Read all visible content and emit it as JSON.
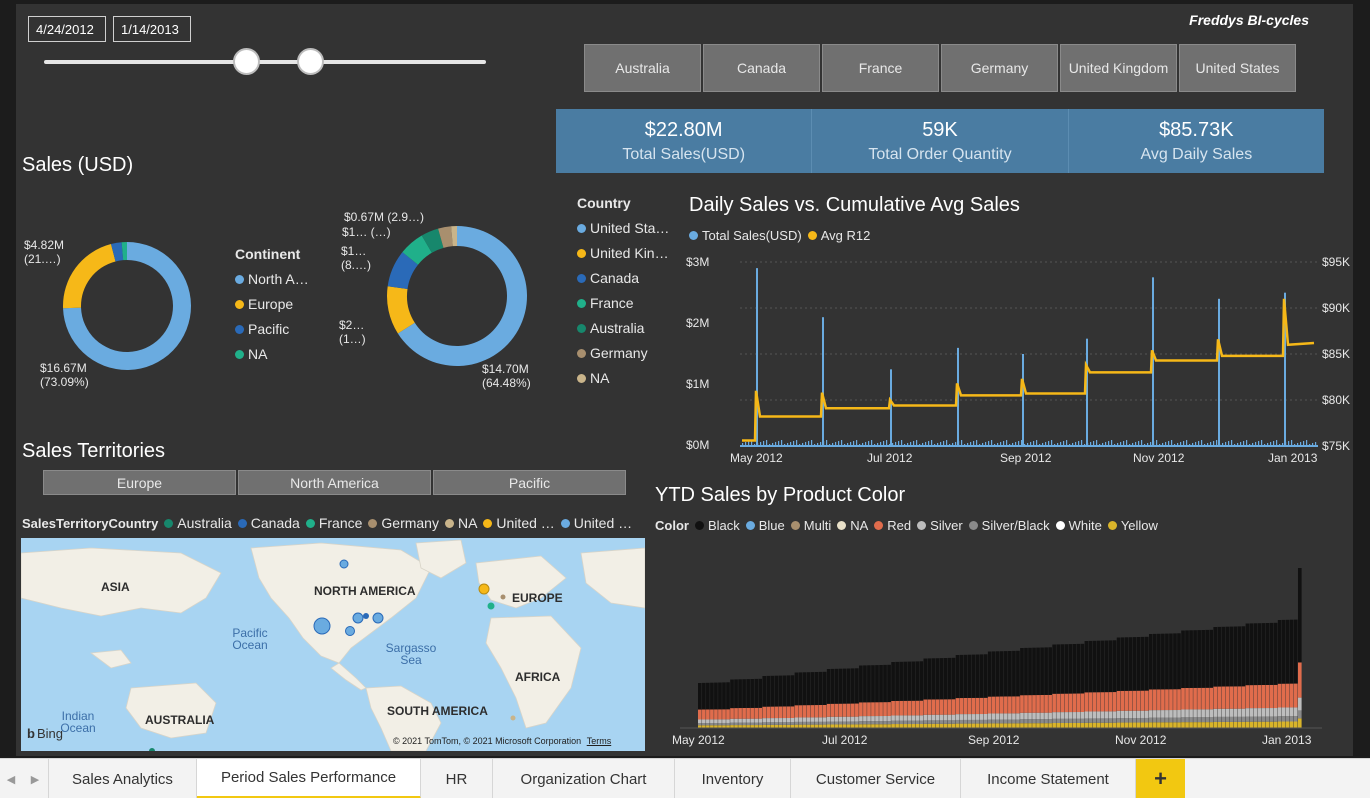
{
  "date_range": {
    "start": "4/24/2012",
    "end": "1/14/2013",
    "range_start_fraction": 0.46,
    "range_end_fraction": 0.6
  },
  "brand": "Freddys BI-cycles",
  "country_buttons": [
    "Australia",
    "Canada",
    "France",
    "Germany",
    "United Kingdom",
    "United States"
  ],
  "kpis": [
    {
      "value": "$22.80M",
      "label": "Total Sales(USD)"
    },
    {
      "value": "59K",
      "label": "Total Order Quantity"
    },
    {
      "value": "$85.73K",
      "label": "Avg Daily Sales"
    }
  ],
  "sales_title": "Sales (USD)",
  "continent_donut": {
    "legend_title": "Continent",
    "items": [
      {
        "label": "North A…",
        "color": "#6aabe0",
        "value": 16.67
      },
      {
        "label": "Europe",
        "color": "#f6b818",
        "value": 4.82
      },
      {
        "label": "Pacific",
        "color": "#2a6ab8",
        "value": 0.6
      },
      {
        "label": "NA",
        "color": "#20b08a",
        "value": 0.3
      }
    ],
    "labels": {
      "top": "$4.82M",
      "top2": "(21.…)",
      "bottom": "$16.67M",
      "bottom2": "(73.09%)"
    }
  },
  "country_donut": {
    "legend_title": "Country",
    "items": [
      {
        "label": "United Sta…",
        "color": "#6aabe0",
        "value": 14.7
      },
      {
        "label": "United Kin…",
        "color": "#f6b818",
        "value": 2.5
      },
      {
        "label": "Canada",
        "color": "#2a6ab8",
        "value": 1.9
      },
      {
        "label": "France",
        "color": "#20b08a",
        "value": 1.3
      },
      {
        "label": "Australia",
        "color": "#17876c",
        "value": 0.9
      },
      {
        "label": "Germany",
        "color": "#a88f6e",
        "value": 0.67
      },
      {
        "label": "NA",
        "color": "#c9b48a",
        "value": 0.3
      }
    ],
    "labels": {
      "l1": "$0.67M (2.9…)",
      "l2": "$1… (…)",
      "l3": "$1…",
      "l4": "(8.…)",
      "l5": "$2…",
      "l6": "(1…)",
      "l7": "$14.70M",
      "l8": "(64.48%)"
    }
  },
  "territories": {
    "title": "Sales Territories",
    "buttons": [
      "Europe",
      "North America",
      "Pacific"
    ],
    "legend_title": "SalesTerritoryCountry",
    "legend": [
      {
        "label": "Australia",
        "color": "#17876c"
      },
      {
        "label": "Canada",
        "color": "#2a6ab8"
      },
      {
        "label": "France",
        "color": "#20b08a"
      },
      {
        "label": "Germany",
        "color": "#a88f6e"
      },
      {
        "label": "NA",
        "color": "#c9b48a"
      },
      {
        "label": "United …",
        "color": "#f6b818"
      },
      {
        "label": "United …",
        "color": "#6aabe0"
      }
    ],
    "map": {
      "asia": "ASIA",
      "north_america": "NORTH AMERICA",
      "europe": "EUROPE",
      "africa": "AFRICA",
      "south_america": "SOUTH AMERICA",
      "australia": "AUSTRALIA",
      "pacific": "Pacific Ocean",
      "sargasso": "Sargasso Sea",
      "indian": "Indian Ocean",
      "bing": "Bing",
      "copyright": "© 2021 TomTom, © 2021 Microsoft Corporation",
      "terms": "Terms"
    }
  },
  "daily_chart": {
    "title": "Daily Sales vs. Cumulative Avg Sales",
    "legend": [
      {
        "label": "Total Sales(USD)",
        "color": "#6aabe0"
      },
      {
        "label": "Avg R12",
        "color": "#f6b818"
      }
    ],
    "y_left": [
      "$0M",
      "$1M",
      "$2M",
      "$3M"
    ],
    "y_right": [
      "$75K",
      "$80K",
      "$85K",
      "$90K",
      "$95K"
    ],
    "x_labels": [
      "May 2012",
      "Jul 2012",
      "Sep 2012",
      "Nov 2012",
      "Jan 2013"
    ]
  },
  "ytd_chart": {
    "title": "YTD Sales by Product Color",
    "legend_title": "Color",
    "legend": [
      {
        "label": "Black",
        "color": "#111111"
      },
      {
        "label": "Blue",
        "color": "#6aabe0"
      },
      {
        "label": "Multi",
        "color": "#a88f6e"
      },
      {
        "label": "NA",
        "color": "#e8e0c8"
      },
      {
        "label": "Red",
        "color": "#e06c4c"
      },
      {
        "label": "Silver",
        "color": "#bdbdbd"
      },
      {
        "label": "Silver/Black",
        "color": "#8a8a8a"
      },
      {
        "label": "White",
        "color": "#ffffff"
      },
      {
        "label": "Yellow",
        "color": "#d9b42a"
      }
    ],
    "x_labels": [
      "May 2012",
      "Jul 2012",
      "Sep 2012",
      "Nov 2012",
      "Jan 2013"
    ]
  },
  "tabs": [
    "Sales Analytics",
    "Period Sales Performance",
    "HR",
    "Organization Chart",
    "Inventory",
    "Customer Service",
    "Income Statement"
  ],
  "active_tab": "Period Sales Performance",
  "add_tab": "+"
}
